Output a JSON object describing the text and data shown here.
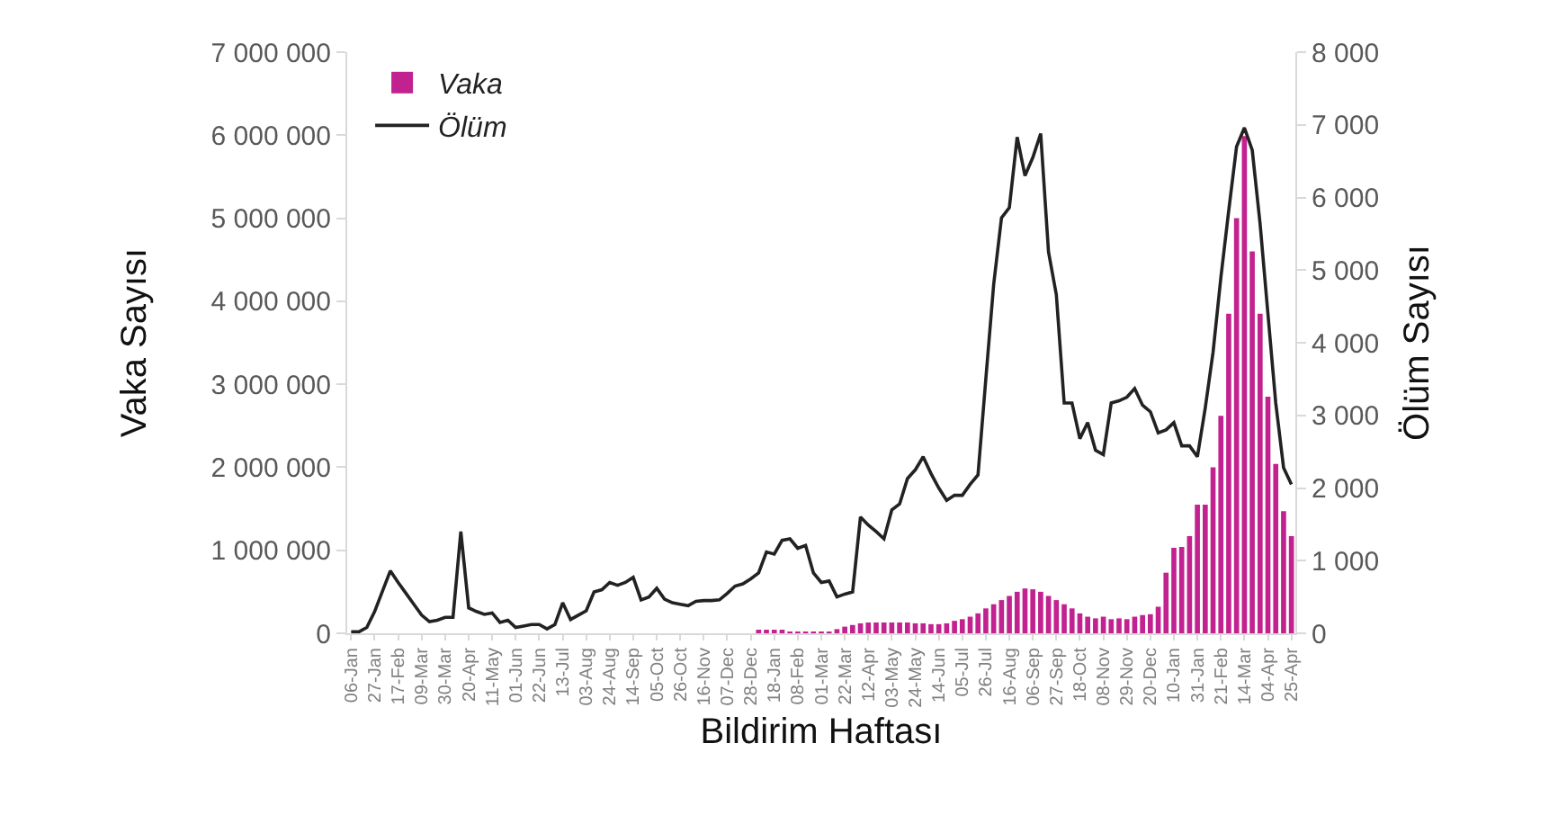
{
  "chart_data": {
    "type": "bar",
    "xlabel": "Bildirim Haftası",
    "ylabel": "Vaka Sayısı",
    "y2label": "Ölüm Sayısı",
    "categories": [
      "06-Jan",
      null,
      null,
      "27-Jan",
      null,
      null,
      "17-Feb",
      null,
      null,
      "09-Mar",
      null,
      null,
      "30-Mar",
      null,
      null,
      "20-Apr",
      null,
      null,
      "11-May",
      null,
      null,
      "01-Jun",
      null,
      null,
      "22-Jun",
      null,
      null,
      "13-Jul",
      null,
      null,
      "03-Aug",
      null,
      null,
      "24-Aug",
      null,
      null,
      "14-Sep",
      null,
      null,
      "05-Oct",
      null,
      null,
      "26-Oct",
      null,
      null,
      "16-Nov",
      null,
      null,
      "07-Dec",
      null,
      null,
      "28-Dec",
      null,
      null,
      "18-Jan",
      null,
      null,
      "08-Feb",
      null,
      null,
      "01-Mar",
      null,
      null,
      "22-Mar",
      null,
      null,
      "12-Apr",
      null,
      null,
      "03-May",
      null,
      null,
      "24-May",
      null,
      null,
      "14-Jun",
      null,
      null,
      "05-Jul",
      null,
      null,
      "26-Jul",
      null,
      null,
      "16-Aug",
      null,
      null,
      "06-Sep",
      null,
      null,
      "27-Sep",
      null,
      null,
      "18-Oct",
      null,
      null,
      "08-Nov",
      null,
      null,
      "29-Nov",
      null,
      null,
      "20-Dec",
      null,
      null,
      "10-Jan",
      null,
      null,
      "31-Jan",
      null,
      null,
      "21-Feb",
      null,
      null,
      "14-Mar",
      null,
      null,
      "04-Apr",
      null,
      null,
      "25-Apr"
    ],
    "series": [
      {
        "name": "Vaka",
        "color": "#c2228f",
        "values": [
          0,
          0,
          0,
          0,
          0,
          0,
          0,
          0,
          0,
          0,
          0,
          0,
          0,
          0,
          0,
          0,
          0,
          0,
          0,
          0,
          0,
          0,
          0,
          0,
          0,
          0,
          0,
          0,
          0,
          0,
          0,
          0,
          0,
          0,
          0,
          0,
          0,
          0,
          0,
          0,
          0,
          0,
          0,
          0,
          0,
          0,
          0,
          0,
          0,
          0,
          0,
          0,
          30000,
          40000,
          40000,
          30000,
          20000,
          10000,
          10000,
          10000,
          10000,
          10000,
          50000,
          80000,
          100000,
          120000,
          130000,
          130000,
          130000,
          130000,
          130000,
          130000,
          120000,
          120000,
          110000,
          110000,
          120000,
          150000,
          170000,
          200000,
          240000,
          300000,
          350000,
          400000,
          450000,
          500000,
          540000,
          530000,
          500000,
          450000,
          400000,
          350000,
          300000,
          240000,
          200000,
          180000,
          200000,
          170000,
          180000,
          170000,
          200000,
          220000,
          230000,
          320000,
          730000,
          1030000,
          1040000,
          1170000,
          1550000,
          1550000,
          2000000,
          2620000,
          3850000,
          5000000,
          5990000,
          4600000,
          3850000,
          2850000,
          2040000,
          1470000,
          1170000
        ]
      },
      {
        "name": "Ölüm",
        "type": "line",
        "axis": "y2",
        "color": "#222222",
        "values": [
          20,
          20,
          80,
          300,
          580,
          860,
          700,
          550,
          400,
          250,
          160,
          180,
          220,
          220,
          1400,
          350,
          300,
          260,
          280,
          150,
          180,
          80,
          100,
          120,
          120,
          60,
          120,
          420,
          190,
          250,
          310,
          570,
          600,
          700,
          660,
          700,
          770,
          460,
          500,
          620,
          470,
          420,
          400,
          380,
          440,
          450,
          450,
          460,
          550,
          650,
          680,
          750,
          830,
          1120,
          1090,
          1280,
          1300,
          1170,
          1210,
          830,
          700,
          720,
          500,
          540,
          570,
          1600,
          1490,
          1400,
          1300,
          1700,
          1780,
          2130,
          2250,
          2430,
          2200,
          2000,
          1830,
          1900,
          1900,
          2050,
          2180,
          3500,
          4800,
          5720,
          5860,
          6830,
          6300,
          6550,
          6880,
          5250,
          4660,
          3170,
          3170,
          2680,
          2900,
          2520,
          2460,
          3170,
          3200,
          3250,
          3370,
          3140,
          3050,
          2760,
          2800,
          2900,
          2580,
          2580,
          2430,
          3100,
          3870,
          4900,
          5820,
          6700,
          6960,
          6650,
          5640,
          4400,
          3170,
          2280,
          2050
        ]
      }
    ],
    "ylim": [
      0,
      7000000
    ],
    "yticks": [
      0,
      {
        "value": 1000000,
        "label": "1 000 000"
      },
      {
        "value": 2000000,
        "label": "2 000 000"
      },
      {
        "value": 3000000,
        "label": "3 000 000"
      },
      {
        "value": 4000000,
        "label": "4 000 000"
      },
      {
        "value": 5000000,
        "label": "5 000 000"
      },
      {
        "value": 6000000,
        "label": "6 000 000"
      },
      {
        "value": 7000000,
        "label": "7 000 000"
      }
    ],
    "y2lim": [
      0,
      8000
    ],
    "y2ticks": [
      0,
      {
        "value": 1000,
        "label": "1 000"
      },
      {
        "value": 2000,
        "label": "2 000"
      },
      {
        "value": 3000,
        "label": "3 000"
      },
      {
        "value": 4000,
        "label": "4 000"
      },
      {
        "value": 5000,
        "label": "5 000"
      },
      {
        "value": 6000,
        "label": "6 000"
      },
      {
        "value": 7000,
        "label": "7 000"
      },
      {
        "value": 8000,
        "label": "8 000"
      }
    ],
    "grid": false,
    "legend": "top left",
    "marker": "none",
    "line_style": "solid"
  }
}
